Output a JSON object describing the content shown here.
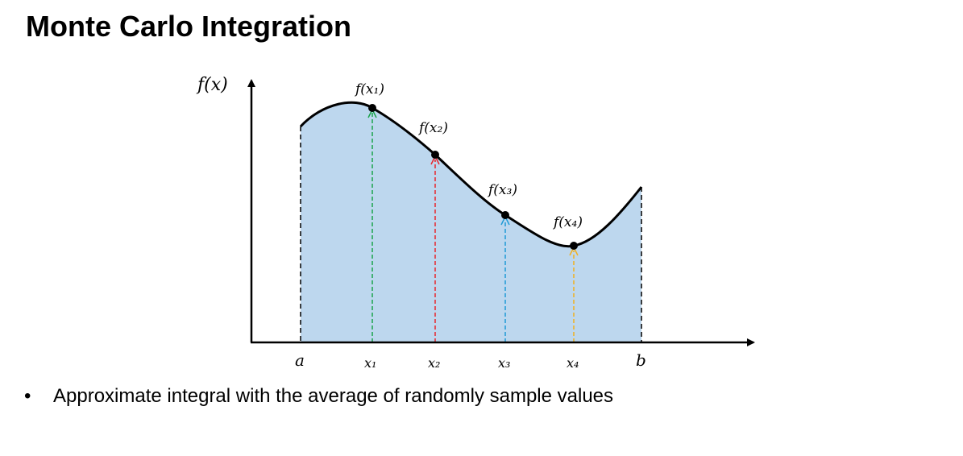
{
  "title": "Monte Carlo Integration",
  "bullet": {
    "marker": "•",
    "text": "Approximate integral with the average of randomly sample values"
  },
  "diagram": {
    "axis_y_label": "f(x)",
    "bound_a": "a",
    "bound_b": "b",
    "fill_color": "#bdd7ee",
    "samples": [
      {
        "x_label": "x₁",
        "f_label": "f(x₁)",
        "color": "#1aa34a"
      },
      {
        "x_label": "x₂",
        "f_label": "f(x₂)",
        "color": "#e8262b"
      },
      {
        "x_label": "x₃",
        "f_label": "f(x₃)",
        "color": "#1e9ad6"
      },
      {
        "x_label": "x₄",
        "f_label": "f(x₄)",
        "color": "#f2b01e"
      }
    ]
  }
}
